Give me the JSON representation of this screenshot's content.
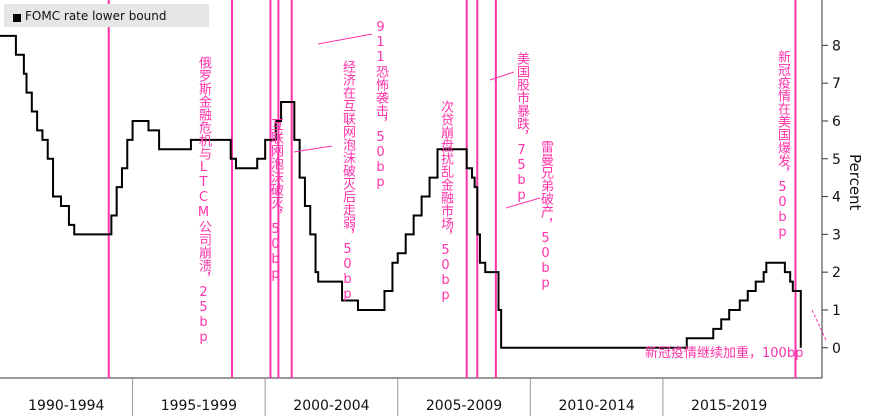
{
  "chart_data": {
    "type": "line",
    "title": "",
    "xlabel": "",
    "ylabel": "Percent",
    "ylim": [
      -0.8,
      9.2
    ],
    "y_ticks": [
      0,
      1,
      2,
      3,
      4,
      5,
      6,
      7,
      8
    ],
    "x_categories": [
      "1990-1994",
      "1995-1999",
      "2000-2004",
      "2005-2009",
      "2010-2014",
      "2015-2019"
    ],
    "xlim": [
      1990.0,
      2021.0
    ],
    "grid": false,
    "legend": "top-left",
    "colors": {
      "line": "#000000",
      "event": "#ff33aa",
      "legend_bg": "#e6e6e6"
    },
    "series": [
      {
        "name": "FOMC rate lower bound",
        "x": [
          1990.0,
          1990.2,
          1990.6,
          1990.9,
          1991.0,
          1991.2,
          1991.4,
          1991.6,
          1991.8,
          1992.0,
          1992.3,
          1992.6,
          1992.8,
          1993.0,
          1994.0,
          1994.2,
          1994.4,
          1994.6,
          1994.8,
          1995.0,
          1995.2,
          1995.6,
          1996.0,
          1996.5,
          1997.0,
          1997.2,
          1998.5,
          1998.7,
          1998.9,
          1999.5,
          1999.7,
          2000.0,
          2000.4,
          2000.6,
          2001.0,
          2001.1,
          2001.3,
          2001.5,
          2001.7,
          2001.9,
          2002.0,
          2002.5,
          2002.9,
          2003.2,
          2003.5,
          2004.3,
          2004.5,
          2004.8,
          2005.0,
          2005.3,
          2005.6,
          2005.9,
          2006.2,
          2006.5,
          2007.0,
          2007.6,
          2007.8,
          2007.9,
          2008.0,
          2008.1,
          2008.3,
          2008.4,
          2008.8,
          2008.9,
          2009.0,
          2015.0,
          2015.9,
          2016.9,
          2017.2,
          2017.5,
          2017.9,
          2018.2,
          2018.5,
          2018.8,
          2018.9,
          2019.5,
          2019.6,
          2019.8,
          2019.9,
          2020.0,
          2020.2
        ],
        "values": [
          8.25,
          8.25,
          7.75,
          7.25,
          6.75,
          6.25,
          5.75,
          5.5,
          5.0,
          4.0,
          3.75,
          3.25,
          3.0,
          3.0,
          3.0,
          3.5,
          4.25,
          4.75,
          5.5,
          6.0,
          6.0,
          5.75,
          5.25,
          5.25,
          5.25,
          5.5,
          5.5,
          5.0,
          4.75,
          4.75,
          5.0,
          5.5,
          6.0,
          6.5,
          6.5,
          5.5,
          4.5,
          3.75,
          3.0,
          2.0,
          1.75,
          1.75,
          1.25,
          1.25,
          1.0,
          1.0,
          1.5,
          2.25,
          2.5,
          3.0,
          3.5,
          4.0,
          4.5,
          5.25,
          5.25,
          4.75,
          4.5,
          4.25,
          3.0,
          2.25,
          2.0,
          2.0,
          1.0,
          0.0,
          0.0,
          0.0,
          0.25,
          0.5,
          0.75,
          1.0,
          1.25,
          1.5,
          1.75,
          2.0,
          2.25,
          2.25,
          2.0,
          1.75,
          1.5,
          1.5,
          0.0
        ]
      }
    ],
    "events": [
      1994.1,
      1998.75,
      2000.2,
      2000.5,
      2001.0,
      2007.6,
      2008.0,
      2008.7,
      2020.0
    ],
    "annotations": [
      {
        "text": "俄罗斯金融危机与LTCM公司崩溃，25bp"
      },
      {
        "text": "互联网泡沫破灭，50bp"
      },
      {
        "text": "经济在互联网泡沫破灭后走弱，50bp"
      },
      {
        "text": "911恐怖袭击，50bp"
      },
      {
        "text": "次贷崩盘扰乱金融市场，50bp"
      },
      {
        "text": "美国股市暴跌，75bp"
      },
      {
        "text": "雷曼兄弟破产，50bp"
      },
      {
        "text": "新冠疫情在美国爆发，50bp"
      },
      {
        "text": "新冠疫情继续加重，100bp"
      }
    ]
  }
}
